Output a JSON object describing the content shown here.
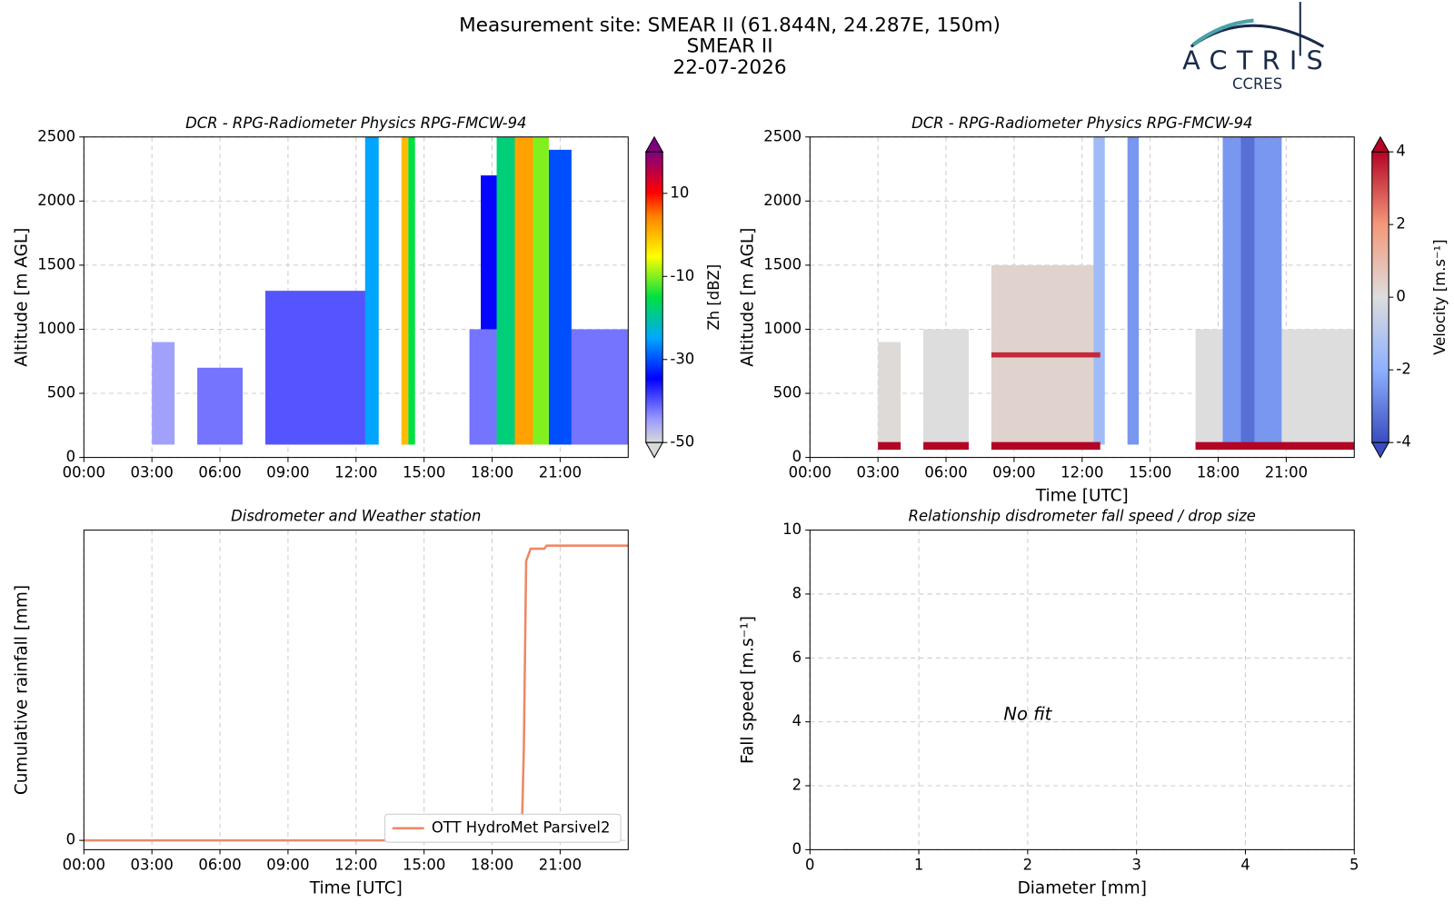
{
  "header": {
    "title": "Measurement site: SMEAR II (61.844N, 24.287E, 150m)",
    "subtitle": "SMEAR II",
    "date": "22-07-2026",
    "logo": "ACTRIS",
    "logo_sub": "CCRES"
  },
  "chart_data": [
    {
      "type": "heatmap",
      "title": "DCR - RPG-Radiometer Physics RPG-FMCW-94",
      "ylabel": "Altitude [m AGL]",
      "xlim": [
        0,
        24
      ],
      "xticks": [
        {
          "value": 0,
          "label": "00:00"
        },
        {
          "value": 3,
          "label": "03:00"
        },
        {
          "value": 6,
          "label": "06:00"
        },
        {
          "value": 9,
          "label": "09:00"
        },
        {
          "value": 12,
          "label": "12:00"
        },
        {
          "value": 15,
          "label": "15:00"
        },
        {
          "value": 18,
          "label": "18:00"
        },
        {
          "value": 21,
          "label": "21:00"
        }
      ],
      "ylim": [
        0,
        2500
      ],
      "yticks": [
        0,
        500,
        1000,
        1500,
        2000,
        2500
      ],
      "grid": true,
      "colormap": "jet",
      "clim": [
        -50,
        20
      ],
      "cticks": [
        -50,
        -30,
        -10,
        10
      ],
      "clabel": "Zh [dBZ]",
      "cells": {
        "x0": [
          3.0,
          5.0,
          8.0,
          17.0,
          21.5,
          17.5,
          12.4,
          20.5,
          18.2,
          19.8,
          14.3,
          14.0,
          19.0
        ],
        "x1": [
          4.0,
          7.0,
          12.5,
          18.2,
          24.0,
          18.5,
          13.0,
          21.5,
          19.0,
          20.5,
          14.6,
          14.3,
          19.8
        ],
        "y0": [
          100,
          100,
          100,
          100,
          100,
          1000,
          100,
          100,
          100,
          100,
          100,
          100,
          100
        ],
        "y1": [
          900,
          700,
          1300,
          1000,
          1000,
          2200,
          2500,
          2400,
          2500,
          2500,
          2500,
          2500,
          2500
        ],
        "values": [
          -45,
          -42,
          -40,
          -42,
          -42,
          -35,
          -25,
          -30,
          -18,
          -10,
          -15,
          0,
          2
        ]
      }
    },
    {
      "type": "heatmap",
      "title": "DCR - RPG-Radiometer Physics RPG-FMCW-94",
      "ylabel": "Altitude [m AGL]",
      "xlabel": "Time [UTC]",
      "xlim": [
        0,
        24
      ],
      "xticks": [
        {
          "value": 0,
          "label": "00:00"
        },
        {
          "value": 3,
          "label": "03:00"
        },
        {
          "value": 6,
          "label": "06:00"
        },
        {
          "value": 9,
          "label": "09:00"
        },
        {
          "value": 12,
          "label": "12:00"
        },
        {
          "value": 15,
          "label": "15:00"
        },
        {
          "value": 18,
          "label": "18:00"
        },
        {
          "value": 21,
          "label": "21:00"
        }
      ],
      "ylim": [
        0,
        2500
      ],
      "yticks": [
        0,
        500,
        1000,
        1500,
        2000,
        2500
      ],
      "grid": true,
      "colormap": "coolwarm",
      "clim": [
        -4,
        4
      ],
      "cticks": [
        -4,
        -2,
        0,
        2,
        4
      ],
      "clabel": "Velocity [m.s⁻¹]",
      "cells": {
        "x0": [
          3.0,
          5.0,
          8.0,
          17.0,
          12.5,
          14.0,
          18.2,
          19.0,
          8.0,
          3.0,
          5.0,
          8.0,
          17.0
        ],
        "x1": [
          4.0,
          7.0,
          12.5,
          24.0,
          13.0,
          14.5,
          20.8,
          19.6,
          12.8,
          4.0,
          7.0,
          12.8,
          24.0
        ],
        "y0": [
          100,
          100,
          100,
          100,
          100,
          100,
          100,
          100,
          780,
          60,
          60,
          60,
          60
        ],
        "y1": [
          900,
          1000,
          1500,
          1000,
          2500,
          2500,
          2500,
          2500,
          820,
          120,
          120,
          120,
          120
        ],
        "values": [
          0.1,
          0,
          0.3,
          0,
          -1.5,
          -2.5,
          -2.5,
          -3.3,
          3.5,
          4,
          4,
          4,
          4
        ]
      }
    },
    {
      "type": "line",
      "title": "Disdrometer and Weather station",
      "ylabel": "Cumulative rainfall [mm]",
      "xlabel": "Time [UTC]",
      "xlim": [
        0,
        24
      ],
      "xticks": [
        {
          "value": 0,
          "label": "00:00"
        },
        {
          "value": 3,
          "label": "03:00"
        },
        {
          "value": 6,
          "label": "06:00"
        },
        {
          "value": 9,
          "label": "09:00"
        },
        {
          "value": 12,
          "label": "12:00"
        },
        {
          "value": 15,
          "label": "15:00"
        },
        {
          "value": 18,
          "label": "18:00"
        },
        {
          "value": 21,
          "label": "21:00"
        }
      ],
      "ylim": [
        -0.3,
        10
      ],
      "yticks": [
        0
      ],
      "grid": true,
      "legend": "lower right",
      "series": [
        {
          "name": "OTT HydroMet Parsivel2",
          "color": "#ee8866",
          "x": [
            0,
            19.3,
            19.4,
            19.5,
            19.7,
            20.3,
            20.4,
            24
          ],
          "values": [
            0,
            0,
            3,
            9,
            9.4,
            9.4,
            9.5,
            9.5
          ]
        }
      ]
    },
    {
      "type": "scatter",
      "title": "Relationship disdrometer fall speed / drop size",
      "ylabel": "Fall speed [m.s⁻¹]",
      "xlabel": "Diameter [mm]",
      "xlim": [
        0,
        5
      ],
      "xticks": [
        0,
        1,
        2,
        3,
        4,
        5
      ],
      "ylim": [
        0,
        10
      ],
      "yticks": [
        0,
        2,
        4,
        6,
        8,
        10
      ],
      "grid": true,
      "annotation": "No fit"
    }
  ]
}
